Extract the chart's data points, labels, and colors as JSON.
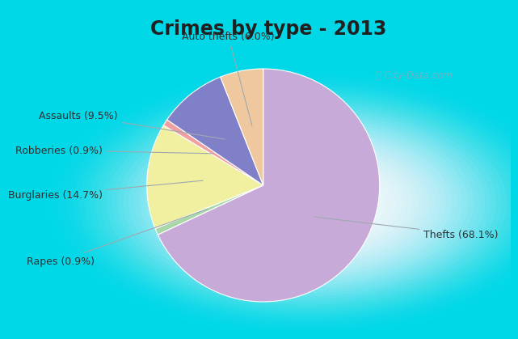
{
  "title": "Crimes by type - 2013",
  "values": [
    68.1,
    0.9,
    14.7,
    0.9,
    9.5,
    6.0
  ],
  "colors": [
    "#c8aad8",
    "#a8d8a8",
    "#f0f0a0",
    "#f0a0a0",
    "#8080c8",
    "#f0c8a0"
  ],
  "label_texts": [
    "Thefts (68.1%)",
    "Rapes (0.9%)",
    "Burglaries (14.7%)",
    "Robberies (0.9%)",
    "Assaults (9.5%)",
    "Auto thefts (6.0%)"
  ],
  "bg_color_top": "#00d8e8",
  "bg_color_main_outer": "#b8dcc8",
  "bg_color_main_inner": "#e8f4f0",
  "title_fontsize": 17,
  "label_fontsize": 9,
  "startangle": 90,
  "label_positions": [
    [
      1.38,
      -0.42,
      "left"
    ],
    [
      -1.45,
      -0.65,
      "right"
    ],
    [
      -1.38,
      -0.08,
      "right"
    ],
    [
      -1.38,
      0.3,
      "right"
    ],
    [
      -1.25,
      0.6,
      "right"
    ],
    [
      -0.3,
      1.28,
      "center"
    ]
  ]
}
